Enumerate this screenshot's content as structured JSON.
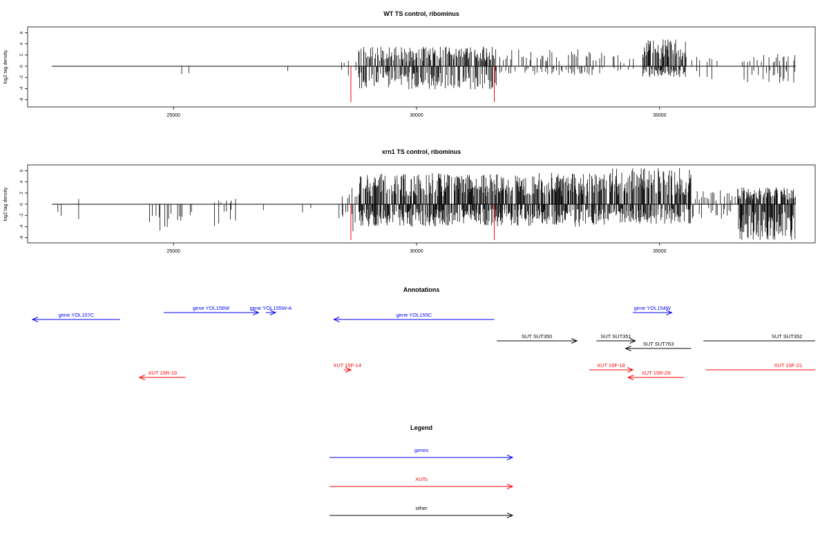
{
  "colors": {
    "gene": "#0000ff",
    "xut": "#ff0000",
    "other": "#000000",
    "axis": "#000000"
  },
  "chart_data": [
    {
      "type": "bar",
      "title": "WT TS control, ribominus",
      "ylabel": "log2 tag density",
      "xlim": [
        22000,
        38200
      ],
      "ylim": [
        -7,
        7
      ],
      "xticks": [
        25000,
        30000,
        35000
      ],
      "yticks": [
        6,
        4,
        2,
        0,
        -2,
        -4,
        -6
      ],
      "baseline": [
        22500,
        37800
      ],
      "markers": [
        28650,
        31600
      ],
      "segments": [
        {
          "range": [
            22600,
            22600
          ],
          "count": 1,
          "down": 3.0
        },
        {
          "range": [
            25150,
            25350
          ],
          "count": 4,
          "down": 2.8
        },
        {
          "range": [
            27350,
            27350
          ],
          "count": 1,
          "down": 1.0
        },
        {
          "range": [
            28450,
            28800
          ],
          "count": 6,
          "up": 1.0,
          "down": 1.8
        },
        {
          "range": [
            28800,
            31650
          ],
          "count": 220,
          "up": 3.5,
          "down": 4.2
        },
        {
          "range": [
            31700,
            33950
          ],
          "count": 70,
          "up": 3.2,
          "down": 1.6
        },
        {
          "range": [
            34000,
            34500
          ],
          "count": 8,
          "up": 2.0,
          "down": 1.0
        },
        {
          "range": [
            34650,
            35550
          ],
          "count": 90,
          "up": 4.8,
          "down": 2.0
        },
        {
          "range": [
            35650,
            36200
          ],
          "count": 8,
          "up": 1.8,
          "down": 2.5
        },
        {
          "range": [
            36700,
            37800
          ],
          "count": 35,
          "up": 2.2,
          "down": 3.0
        }
      ]
    },
    {
      "type": "bar",
      "title": "xrn1 TS control, ribominus",
      "ylabel": "log2 tag density",
      "xlim": [
        22000,
        38200
      ],
      "ylim": [
        -7,
        7
      ],
      "xticks": [
        25000,
        30000,
        35000
      ],
      "yticks": [
        6,
        4,
        2,
        0,
        -2,
        -4,
        -6
      ],
      "baseline": [
        22500,
        37800
      ],
      "markers": [
        28650,
        31600
      ],
      "segments": [
        {
          "range": [
            22550,
            22700
          ],
          "count": 3,
          "down": 2.5
        },
        {
          "range": [
            23050,
            23050
          ],
          "count": 1,
          "up": 1.0,
          "down": 3.0
        },
        {
          "range": [
            23600,
            23900
          ],
          "count": 2,
          "down": 1.5
        },
        {
          "range": [
            24250,
            24250
          ],
          "count": 1,
          "down": 3.5
        },
        {
          "range": [
            24500,
            25450
          ],
          "count": 30,
          "down": 5.0
        },
        {
          "range": [
            25800,
            26350
          ],
          "count": 10,
          "up": 1.0,
          "down": 4.8
        },
        {
          "range": [
            26850,
            26850
          ],
          "count": 1,
          "down": 2.3
        },
        {
          "range": [
            27500,
            27950
          ],
          "count": 2,
          "down": 1.8
        },
        {
          "range": [
            28400,
            28800
          ],
          "count": 10,
          "up": 3.0,
          "down": 5.0
        },
        {
          "range": [
            28800,
            34000
          ],
          "count": 520,
          "up": 5.6,
          "down": 4.0
        },
        {
          "range": [
            34000,
            35650
          ],
          "count": 160,
          "up": 6.5,
          "down": 3.5
        },
        {
          "range": [
            35650,
            36600
          ],
          "count": 25,
          "up": 2.5,
          "down": 2.8
        },
        {
          "range": [
            36600,
            37800
          ],
          "count": 120,
          "up": 3.0,
          "down": 6.5
        }
      ]
    }
  ],
  "annotations": {
    "title": "Annotations",
    "items": [
      {
        "label": "gene YOL157C",
        "kind": "gene",
        "start": 22100,
        "end": 23900,
        "dir": "left",
        "row": 1
      },
      {
        "label": "gene YOL156W",
        "kind": "gene",
        "start": 24800,
        "end": 26750,
        "dir": "right",
        "row": 0
      },
      {
        "label": "gene YOL155W-A",
        "kind": "gene",
        "start": 26900,
        "end": 27100,
        "dir": "right",
        "row": 0
      },
      {
        "label": "gene YOL155C",
        "kind": "gene",
        "start": 28300,
        "end": 31600,
        "dir": "left",
        "row": 1
      },
      {
        "label": "gene YOL154W",
        "kind": "gene",
        "start": 34450,
        "end": 35250,
        "dir": "right",
        "row": 0
      },
      {
        "label": "SUT SUT350",
        "kind": "other",
        "start": 31650,
        "end": 33300,
        "dir": "right",
        "row": 2
      },
      {
        "label": "SUT SUT351",
        "kind": "other",
        "start": 33700,
        "end": 34500,
        "dir": "right",
        "row": 2
      },
      {
        "label": "SUT SUT763",
        "kind": "other",
        "start": 34300,
        "end": 35650,
        "dir": "left",
        "row": 3
      },
      {
        "label": "SUT SUT352",
        "kind": "other",
        "start": 35900,
        "end": 38200,
        "dir": "none",
        "row": 2
      },
      {
        "label": "XUT 15R-19",
        "kind": "xut",
        "start": 24300,
        "end": 25250,
        "dir": "left",
        "row": 5
      },
      {
        "label": "XUT 15F-14",
        "kind": "xut",
        "start": 28500,
        "end": 28650,
        "dir": "right",
        "row": 4
      },
      {
        "label": "XUT 15F-18",
        "kind": "xut",
        "start": 33550,
        "end": 34450,
        "dir": "right",
        "row": 4
      },
      {
        "label": "XUT 15R-29",
        "kind": "xut",
        "start": 34350,
        "end": 35500,
        "dir": "left",
        "row": 5
      },
      {
        "label": "XUT 15F-21",
        "kind": "xut",
        "start": 35950,
        "end": 38200,
        "dir": "none",
        "row": 4
      }
    ]
  },
  "legend": {
    "title": "Legend",
    "items": [
      {
        "label": "genes",
        "kind": "gene"
      },
      {
        "label": "XUTs",
        "kind": "xut"
      },
      {
        "label": "other",
        "kind": "other"
      }
    ]
  }
}
